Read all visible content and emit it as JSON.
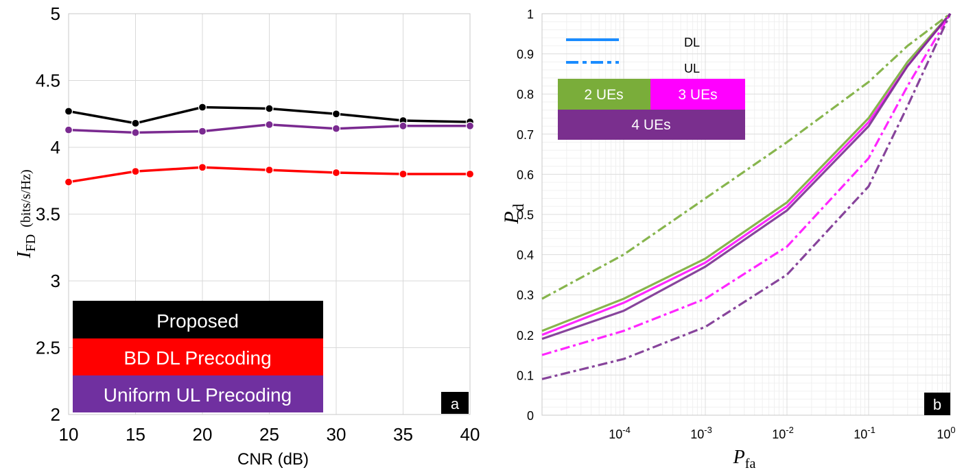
{
  "chart_data": [
    {
      "type": "line",
      "panel_label": "a",
      "xlabel": "CNR (dB)",
      "ylabel": "I_FD (bits/s/Hz)",
      "ylabel_main": "I",
      "ylabel_sub": "FD",
      "ylabel_units": "(bits/s/Hz)",
      "x": [
        10,
        15,
        20,
        25,
        30,
        35,
        40
      ],
      "xlim": [
        10,
        40
      ],
      "ylim": [
        2,
        5
      ],
      "xticks": [
        "10",
        "15",
        "20",
        "25",
        "30",
        "35",
        "40"
      ],
      "yticks": [
        "2",
        "2.5",
        "3",
        "3.5",
        "4",
        "4.5",
        "5"
      ],
      "grid": true,
      "series": [
        {
          "name": "Proposed",
          "color": "#000000",
          "values": [
            4.27,
            4.18,
            4.3,
            4.29,
            4.25,
            4.2,
            4.19
          ]
        },
        {
          "name": "BD DL Precoding",
          "color": "#ff0000",
          "values": [
            3.74,
            3.82,
            3.85,
            3.83,
            3.81,
            3.8,
            3.8
          ]
        },
        {
          "name": "Uniform UL Precoding",
          "color": "#7a2a90",
          "values": [
            4.13,
            4.11,
            4.12,
            4.17,
            4.14,
            4.16,
            4.16
          ]
        }
      ],
      "legend": [
        {
          "label": "Proposed",
          "bg": "#000000",
          "fg": "#ffffff"
        },
        {
          "label": "BD DL Precoding",
          "bg": "#ff0000",
          "fg": "#ffffff"
        },
        {
          "label": "Uniform UL Precoding",
          "bg": "#7030a0",
          "fg": "#ffffff"
        }
      ]
    },
    {
      "type": "line",
      "panel_label": "b",
      "xscale": "log",
      "xlabel": "P_fa",
      "xlabel_main": "P",
      "xlabel_sub": "fa",
      "ylabel": "P_d",
      "ylabel_main": "P",
      "ylabel_sub": "d",
      "xlim": [
        1e-05,
        1
      ],
      "ylim": [
        0,
        1
      ],
      "xticks": [
        {
          "base": "10",
          "exp": "-4",
          "value": 0.0001
        },
        {
          "base": "10",
          "exp": "-3",
          "value": 0.001
        },
        {
          "base": "10",
          "exp": "-2",
          "value": 0.01
        },
        {
          "base": "10",
          "exp": "-1",
          "value": 0.1
        },
        {
          "base": "10",
          "exp": "0",
          "value": 1
        }
      ],
      "yticks": [
        "0",
        "0.1",
        "0.2",
        "0.3",
        "0.4",
        "0.5",
        "0.6",
        "0.7",
        "0.8",
        "0.9",
        "1"
      ],
      "grid": true,
      "series": [
        {
          "name": "2 UEs DL",
          "color": "#7aad3a",
          "dash": "solid",
          "x": [
            1e-05,
            0.0001,
            0.001,
            0.01,
            0.1,
            0.3,
            1
          ],
          "values": [
            0.21,
            0.29,
            0.39,
            0.53,
            0.74,
            0.88,
            1.0
          ]
        },
        {
          "name": "3 UEs DL",
          "color": "#ff10ff",
          "dash": "solid",
          "x": [
            1e-05,
            0.0001,
            0.001,
            0.01,
            0.1,
            0.3,
            1
          ],
          "values": [
            0.2,
            0.28,
            0.38,
            0.52,
            0.73,
            0.87,
            1.0
          ]
        },
        {
          "name": "4 UEs DL",
          "color": "#7a3090",
          "dash": "solid",
          "x": [
            1e-05,
            0.0001,
            0.001,
            0.01,
            0.1,
            0.3,
            1
          ],
          "values": [
            0.19,
            0.26,
            0.37,
            0.51,
            0.72,
            0.87,
            1.0
          ]
        },
        {
          "name": "2 UEs UL",
          "color": "#7aad3a",
          "dash": "dashdot",
          "x": [
            1e-05,
            0.0001,
            0.001,
            0.01,
            0.1,
            0.3,
            1
          ],
          "values": [
            0.29,
            0.4,
            0.54,
            0.68,
            0.83,
            0.92,
            1.0
          ]
        },
        {
          "name": "3 UEs UL",
          "color": "#ff10ff",
          "dash": "dashdot",
          "x": [
            1e-05,
            0.0001,
            0.001,
            0.01,
            0.1,
            0.3,
            1
          ],
          "values": [
            0.15,
            0.21,
            0.29,
            0.42,
            0.64,
            0.82,
            1.0
          ]
        },
        {
          "name": "4 UEs UL",
          "color": "#7a3090",
          "dash": "dashdot",
          "x": [
            1e-05,
            0.0001,
            0.001,
            0.01,
            0.1,
            0.3,
            1
          ],
          "values": [
            0.09,
            0.14,
            0.22,
            0.35,
            0.57,
            0.77,
            1.0
          ]
        }
      ],
      "legend": {
        "line_styles": [
          {
            "label": "DL",
            "dash": "solid",
            "color": "#1a8cff"
          },
          {
            "label": "UL",
            "dash": "dashdot",
            "color": "#1a8cff"
          }
        ],
        "groups": [
          {
            "label": "2 UEs",
            "bg": "#7aad3a",
            "fg": "#ffffff"
          },
          {
            "label": "3 UEs",
            "bg": "#ff00ff",
            "fg": "#ffffff"
          },
          {
            "label": "4 UEs",
            "bg": "#7a2f8e",
            "fg": "#ffffff"
          }
        ]
      }
    }
  ]
}
